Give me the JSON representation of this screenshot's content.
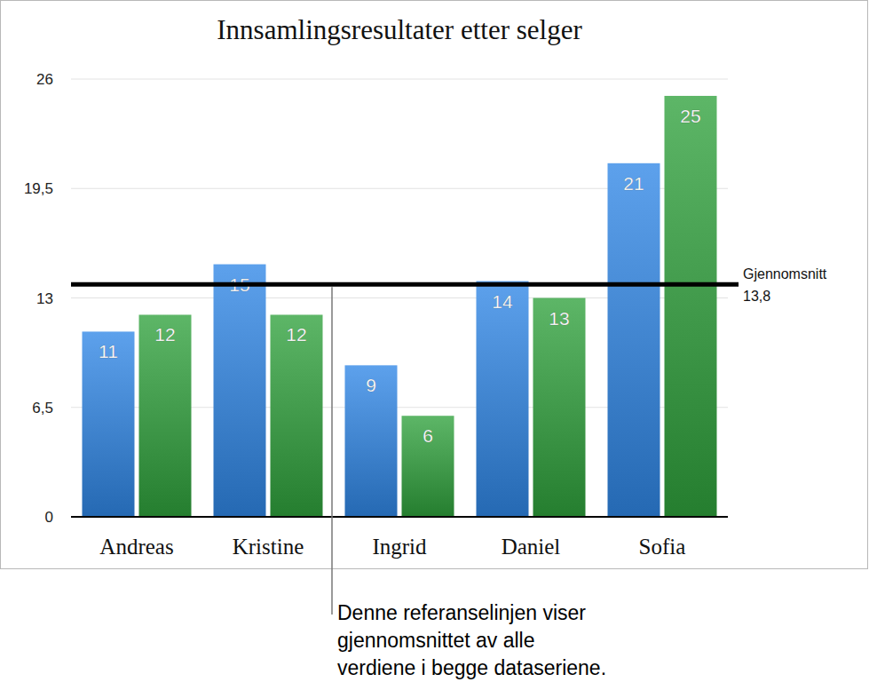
{
  "chart_data": {
    "type": "bar",
    "title": "Innsamlingsresultater etter selger",
    "categories": [
      "Andreas",
      "Kristine",
      "Ingrid",
      "Daniel",
      "Sofia"
    ],
    "series": [
      {
        "color": "#2f86e6",
        "values": [
          11,
          15,
          9,
          14,
          21
        ]
      },
      {
        "color": "#2fa23c",
        "values": [
          12,
          12,
          6,
          13,
          25
        ]
      }
    ],
    "ylim": [
      0,
      26
    ],
    "yticks": [
      0,
      {
        "value": 6.5,
        "label": "6,5"
      },
      13,
      {
        "value": 19.5,
        "label": "19,5"
      },
      26
    ],
    "grid": true,
    "data_labels": true,
    "reference_line": {
      "value": 13.8,
      "label": "Gjennomsnitt",
      "value_label": "13,8"
    },
    "annotation": [
      "Denne referanselinjen viser",
      "gjennomsnittet av alle",
      "verdiene i begge dataseriene."
    ]
  }
}
